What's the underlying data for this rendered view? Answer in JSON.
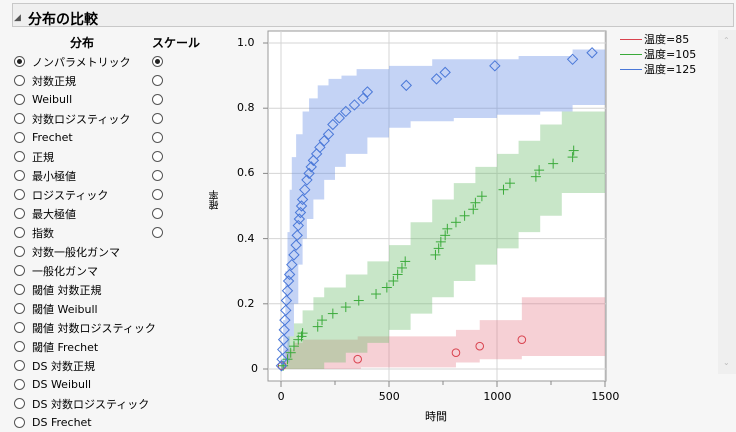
{
  "header": {
    "title": "分布の比較"
  },
  "controls": {
    "dist_header": "分布",
    "scale_header": "スケール",
    "distributions": [
      "ノンパラメトリック",
      "対数正規",
      "Weibull",
      "対数ロジスティック",
      "Frechet",
      "正規",
      "最小極値",
      "ロジスティック",
      "最大極値",
      "指数",
      "対数一般化ガンマ",
      "一般化ガンマ",
      "閾値 対数正規",
      "閾値 Weibull",
      "閾値 対数ロジスティック",
      "閾値 Frechet",
      "DS 対数正規",
      "DS Weibull",
      "DS 対数ロジスティック",
      "DS Frechet"
    ],
    "selected_distribution": 0,
    "scale_count": 10,
    "selected_scale": 0
  },
  "chart_data": {
    "type": "scatter",
    "xlabel": "時間",
    "ylabel": "確率",
    "xlim": [
      -60,
      1550
    ],
    "ylim": [
      -0.04,
      1.04
    ],
    "xticks": [
      0,
      500,
      1000,
      1500
    ],
    "yticks": [
      0,
      0.2,
      0.4,
      0.6,
      0.8,
      1.0
    ],
    "ytick_labels": [
      "0",
      "0.2",
      "0.4",
      "0.6",
      "0.8",
      "1.0"
    ],
    "legend": [
      {
        "label": "温度=85",
        "color": "#d9434f"
      },
      {
        "label": "温度=105",
        "color": "#3aaa3a"
      },
      {
        "label": "温度=125",
        "color": "#4a78d8"
      }
    ],
    "series": [
      {
        "name": "温度=85",
        "marker": "circle",
        "color": "#d9434f",
        "band_color": "rgba(230,120,135,0.35)",
        "points": [
          [
            5,
            0.01
          ],
          [
            355,
            0.03
          ],
          [
            810,
            0.05
          ],
          [
            920,
            0.07
          ],
          [
            1115,
            0.09
          ]
        ],
        "band_lower": [
          [
            0,
            0
          ],
          [
            355,
            0
          ],
          [
            370,
            0.005
          ],
          [
            810,
            0.02
          ],
          [
            920,
            0.03
          ],
          [
            1115,
            0.04
          ],
          [
            1500,
            0.04
          ]
        ],
        "band_upper": [
          [
            0,
            0.01
          ],
          [
            20,
            0.06
          ],
          [
            60,
            0.08
          ],
          [
            100,
            0.09
          ],
          [
            355,
            0.1
          ],
          [
            810,
            0.12
          ],
          [
            920,
            0.15
          ],
          [
            1115,
            0.22
          ],
          [
            1500,
            0.22
          ]
        ]
      },
      {
        "name": "温度=105",
        "marker": "plus",
        "color": "#3aaa3a",
        "band_color": "rgba(110,190,110,0.38)",
        "points": [
          [
            10,
            0.01
          ],
          [
            30,
            0.03
          ],
          [
            45,
            0.05
          ],
          [
            60,
            0.07
          ],
          [
            80,
            0.09
          ],
          [
            95,
            0.1
          ],
          [
            100,
            0.11
          ],
          [
            170,
            0.13
          ],
          [
            190,
            0.15
          ],
          [
            240,
            0.17
          ],
          [
            300,
            0.19
          ],
          [
            360,
            0.21
          ],
          [
            440,
            0.23
          ],
          [
            490,
            0.25
          ],
          [
            520,
            0.27
          ],
          [
            540,
            0.29
          ],
          [
            560,
            0.31
          ],
          [
            575,
            0.33
          ],
          [
            715,
            0.35
          ],
          [
            730,
            0.37
          ],
          [
            740,
            0.39
          ],
          [
            760,
            0.41
          ],
          [
            770,
            0.43
          ],
          [
            810,
            0.45
          ],
          [
            850,
            0.47
          ],
          [
            890,
            0.49
          ],
          [
            900,
            0.51
          ],
          [
            930,
            0.53
          ],
          [
            1030,
            0.55
          ],
          [
            1060,
            0.57
          ],
          [
            1180,
            0.59
          ],
          [
            1195,
            0.61
          ],
          [
            1260,
            0.63
          ],
          [
            1350,
            0.65
          ],
          [
            1355,
            0.67
          ]
        ],
        "band_lower": [
          [
            0,
            0
          ],
          [
            100,
            0
          ],
          [
            200,
            0.02
          ],
          [
            300,
            0.05
          ],
          [
            400,
            0.08
          ],
          [
            500,
            0.12
          ],
          [
            600,
            0.17
          ],
          [
            700,
            0.22
          ],
          [
            800,
            0.27
          ],
          [
            900,
            0.32
          ],
          [
            1000,
            0.37
          ],
          [
            1100,
            0.42
          ],
          [
            1200,
            0.47
          ],
          [
            1300,
            0.54
          ],
          [
            1500,
            0.54
          ]
        ],
        "band_upper": [
          [
            0,
            0.02
          ],
          [
            30,
            0.1
          ],
          [
            60,
            0.14
          ],
          [
            100,
            0.18
          ],
          [
            150,
            0.22
          ],
          [
            200,
            0.25
          ],
          [
            300,
            0.29
          ],
          [
            400,
            0.33
          ],
          [
            500,
            0.38
          ],
          [
            600,
            0.45
          ],
          [
            700,
            0.52
          ],
          [
            800,
            0.57
          ],
          [
            900,
            0.62
          ],
          [
            1000,
            0.66
          ],
          [
            1100,
            0.7
          ],
          [
            1200,
            0.75
          ],
          [
            1300,
            0.79
          ],
          [
            1500,
            0.79
          ]
        ]
      },
      {
        "name": "温度=125",
        "marker": "diamond",
        "color": "#4a78d8",
        "band_color": "rgba(100,140,230,0.38)",
        "points": [
          [
            2,
            0.01
          ],
          [
            5,
            0.03
          ],
          [
            8,
            0.06
          ],
          [
            12,
            0.09
          ],
          [
            15,
            0.12
          ],
          [
            18,
            0.15
          ],
          [
            22,
            0.18
          ],
          [
            25,
            0.21
          ],
          [
            30,
            0.24
          ],
          [
            35,
            0.27
          ],
          [
            40,
            0.29
          ],
          [
            50,
            0.32
          ],
          [
            60,
            0.35
          ],
          [
            70,
            0.38
          ],
          [
            75,
            0.41
          ],
          [
            80,
            0.44
          ],
          [
            85,
            0.46
          ],
          [
            90,
            0.48
          ],
          [
            95,
            0.5
          ],
          [
            100,
            0.52
          ],
          [
            110,
            0.55
          ],
          [
            120,
            0.58
          ],
          [
            130,
            0.6
          ],
          [
            140,
            0.62
          ],
          [
            150,
            0.64
          ],
          [
            165,
            0.66
          ],
          [
            180,
            0.68
          ],
          [
            200,
            0.7
          ],
          [
            220,
            0.72
          ],
          [
            240,
            0.75
          ],
          [
            270,
            0.77
          ],
          [
            300,
            0.79
          ],
          [
            340,
            0.81
          ],
          [
            380,
            0.83
          ],
          [
            400,
            0.85
          ],
          [
            580,
            0.87
          ],
          [
            720,
            0.89
          ],
          [
            760,
            0.91
          ],
          [
            990,
            0.93
          ],
          [
            1350,
            0.95
          ],
          [
            1440,
            0.97
          ]
        ],
        "band_lower": [
          [
            0,
            0
          ],
          [
            20,
            0.02
          ],
          [
            40,
            0.1
          ],
          [
            60,
            0.2
          ],
          [
            80,
            0.32
          ],
          [
            100,
            0.4
          ],
          [
            120,
            0.46
          ],
          [
            150,
            0.52
          ],
          [
            200,
            0.58
          ],
          [
            250,
            0.62
          ],
          [
            300,
            0.66
          ],
          [
            400,
            0.71
          ],
          [
            500,
            0.74
          ],
          [
            600,
            0.76
          ],
          [
            800,
            0.77
          ],
          [
            1000,
            0.78
          ],
          [
            1200,
            0.79
          ],
          [
            1350,
            0.81
          ],
          [
            1500,
            0.81
          ]
        ],
        "band_upper": [
          [
            0,
            0.03
          ],
          [
            10,
            0.15
          ],
          [
            20,
            0.3
          ],
          [
            30,
            0.42
          ],
          [
            40,
            0.55
          ],
          [
            50,
            0.65
          ],
          [
            70,
            0.72
          ],
          [
            100,
            0.79
          ],
          [
            130,
            0.83
          ],
          [
            170,
            0.87
          ],
          [
            220,
            0.89
          ],
          [
            280,
            0.9
          ],
          [
            350,
            0.92
          ],
          [
            500,
            0.93
          ],
          [
            700,
            0.95
          ],
          [
            900,
            0.95
          ],
          [
            1100,
            0.96
          ],
          [
            1350,
            0.98
          ],
          [
            1500,
            0.99
          ]
        ]
      }
    ]
  }
}
